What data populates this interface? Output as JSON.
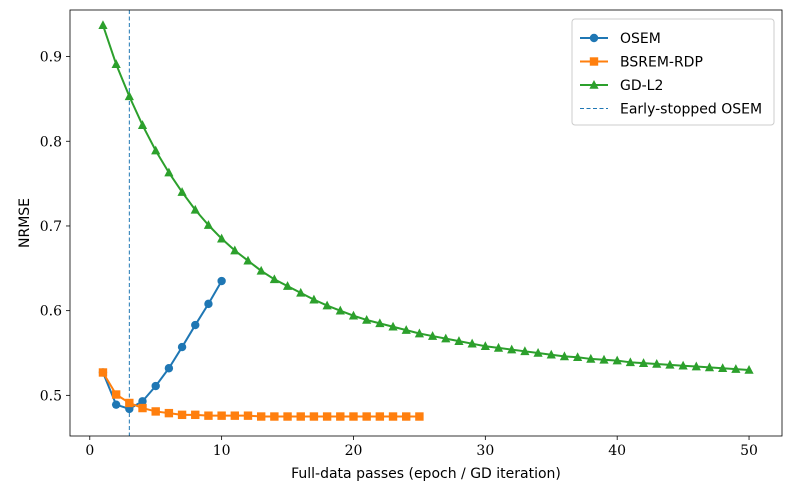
{
  "chart_data": {
    "type": "line",
    "title": "",
    "xlabel": "Full-data passes (epoch / GD iteration)",
    "ylabel": "NRMSE",
    "xlim": [
      -1.5,
      52.5
    ],
    "ylim": [
      0.452,
      0.955
    ],
    "xticks": [
      0,
      10,
      20,
      30,
      40,
      50
    ],
    "yticks": [
      0.5,
      0.6,
      0.7,
      0.8,
      0.9
    ],
    "xtick_labels": [
      "0",
      "10",
      "20",
      "30",
      "40",
      "50"
    ],
    "ytick_labels": [
      "0.5",
      "0.6",
      "0.7",
      "0.8",
      "0.9"
    ],
    "grid": false,
    "legend": "top-right",
    "series": [
      {
        "name": "OSEM",
        "color": "#1f77b4",
        "marker": "circle",
        "x": [
          1,
          2,
          3,
          4,
          5,
          6,
          7,
          8,
          9,
          10
        ],
        "y": [
          0.527,
          0.489,
          0.484,
          0.493,
          0.511,
          0.532,
          0.557,
          0.583,
          0.608,
          0.635
        ]
      },
      {
        "name": "BSREM-RDP",
        "color": "#ff7f0e",
        "marker": "square",
        "x": [
          1,
          2,
          3,
          4,
          5,
          6,
          7,
          8,
          9,
          10,
          11,
          12,
          13,
          14,
          15,
          16,
          17,
          18,
          19,
          20,
          21,
          22,
          23,
          24,
          25
        ],
        "y": [
          0.527,
          0.501,
          0.491,
          0.485,
          0.481,
          0.479,
          0.477,
          0.477,
          0.476,
          0.476,
          0.476,
          0.476,
          0.475,
          0.475,
          0.475,
          0.475,
          0.475,
          0.475,
          0.475,
          0.475,
          0.475,
          0.475,
          0.475,
          0.475,
          0.475
        ]
      },
      {
        "name": "GD-L2",
        "color": "#2ca02c",
        "marker": "triangle",
        "x": [
          1,
          2,
          3,
          4,
          5,
          6,
          7,
          8,
          9,
          10,
          11,
          12,
          13,
          14,
          15,
          16,
          17,
          18,
          19,
          20,
          21,
          22,
          23,
          24,
          25,
          26,
          27,
          28,
          29,
          30,
          31,
          32,
          33,
          34,
          35,
          36,
          37,
          38,
          39,
          40,
          41,
          42,
          43,
          44,
          45,
          46,
          47,
          48,
          49,
          50
        ],
        "y": [
          0.937,
          0.891,
          0.853,
          0.819,
          0.789,
          0.763,
          0.74,
          0.719,
          0.701,
          0.685,
          0.671,
          0.659,
          0.647,
          0.637,
          0.629,
          0.621,
          0.613,
          0.606,
          0.6,
          0.594,
          0.589,
          0.585,
          0.581,
          0.577,
          0.573,
          0.57,
          0.567,
          0.564,
          0.561,
          0.558,
          0.556,
          0.554,
          0.552,
          0.55,
          0.548,
          0.546,
          0.545,
          0.543,
          0.542,
          0.541,
          0.539,
          0.538,
          0.537,
          0.536,
          0.535,
          0.534,
          0.533,
          0.532,
          0.531,
          0.53
        ]
      }
    ],
    "annotations": [
      {
        "type": "vline",
        "name": "Early-stopped OSEM",
        "x": 3,
        "color": "#1f77b4",
        "style": "dashed"
      }
    ]
  }
}
